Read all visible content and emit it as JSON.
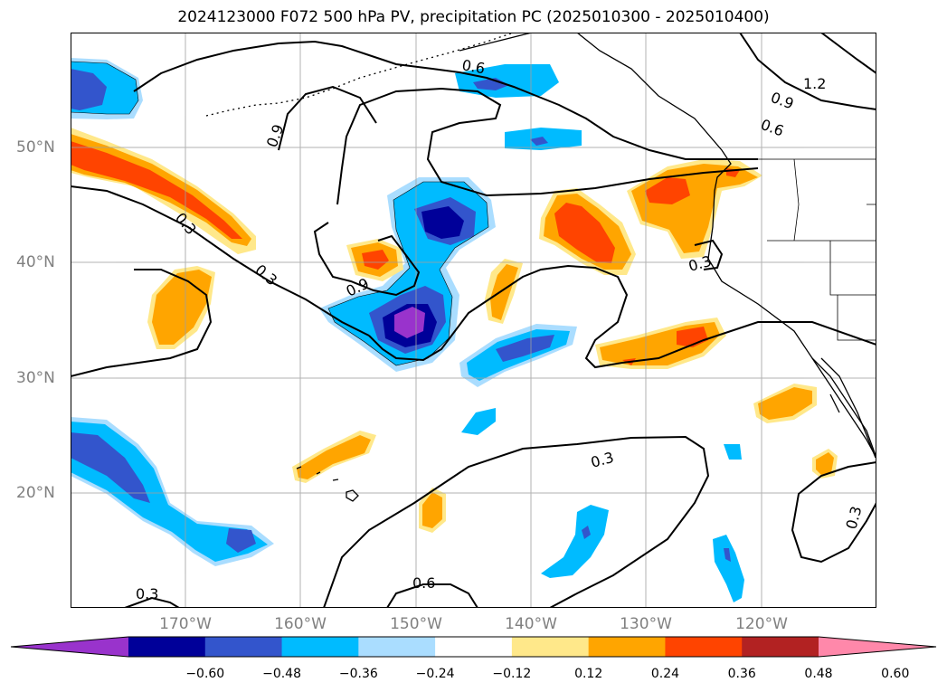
{
  "title": "2024123000 F072 500 hPa PV, precipitation PC (2025010300 - 2025010400)",
  "map": {
    "extent": {
      "lon": [
        -180,
        -110
      ],
      "lat": [
        10,
        60
      ]
    },
    "longitude_labels": [
      "170°W",
      "160°W",
      "150°W",
      "140°W",
      "130°W",
      "120°W"
    ],
    "latitude_labels": [
      "50°N",
      "40°N",
      "30°N",
      "20°N"
    ],
    "contour_labels": [
      "0.6",
      "1.2",
      "0.9",
      "0.6",
      "0.9",
      "0.3",
      "0.3",
      "0.9",
      "0.3",
      "0.3",
      "0.3",
      "0.6",
      "0.3"
    ]
  },
  "colorbar": {
    "tick_labels": [
      "−0.60",
      "−0.48",
      "−0.36",
      "−0.24",
      "−0.12",
      "0.12",
      "0.24",
      "0.36",
      "0.48",
      "0.60"
    ],
    "colors": {
      "lt_-0.60": "#9933cc",
      "-0.60_-0.48": "#000099",
      "-0.48_-0.36": "#3355cc",
      "-0.36_-0.24": "#00bbff",
      "-0.24_-0.12": "#aaddff",
      "-0.12_0.12": "#ffffff",
      "0.12_0.24": "#ffe88a",
      "0.24_0.36": "#ffa500",
      "0.36_0.48": "#ff4400",
      "0.48_0.60": "#b22222",
      "gt_0.60": "#ff88aa"
    }
  }
}
